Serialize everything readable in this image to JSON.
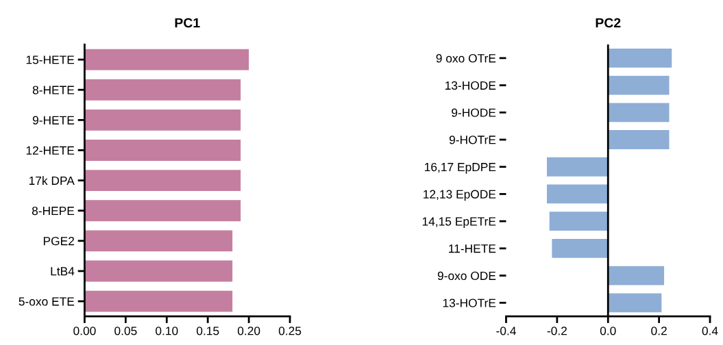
{
  "chart_data": [
    {
      "type": "bar",
      "orientation": "horizontal",
      "title": "PC1",
      "categories": [
        "15-HETE",
        "8-HETE",
        "9-HETE",
        "12-HETE",
        "17k DPA",
        "8-HEPE",
        "PGE2",
        "LtB4",
        "5-oxo ETE"
      ],
      "values": [
        0.2,
        0.19,
        0.19,
        0.19,
        0.19,
        0.19,
        0.18,
        0.18,
        0.18
      ],
      "color": "#c47fa0",
      "xlim": [
        0,
        0.25
      ],
      "xticks": [
        {
          "value": 0,
          "label": "0.00"
        },
        0.05,
        {
          "value": 0.1,
          "label": "0.10"
        },
        0.15,
        {
          "value": 0.2,
          "label": "0.20"
        },
        0.25
      ],
      "grid": false
    },
    {
      "type": "bar",
      "orientation": "horizontal",
      "title": "PC2",
      "categories": [
        "9 oxo OTrE",
        "13-HODE",
        "9-HODE",
        "9-HOTrE",
        "16,17 EpDPE",
        "12,13 EpODE",
        "14,15 EpETrE",
        "11-HETE",
        "9-oxo ODE",
        "13-HOTrE"
      ],
      "values": [
        0.25,
        0.24,
        0.24,
        0.24,
        -0.24,
        -0.24,
        -0.23,
        -0.22,
        0.22,
        0.21
      ],
      "color": "#8eaed6",
      "xlim": [
        -0.4,
        0.4
      ],
      "xticks": [
        -0.4,
        -0.2,
        {
          "value": 0,
          "label": "0.0"
        },
        0.2,
        0.4
      ],
      "grid": false,
      "ref_lines": [
        {
          "axis": "x",
          "value": 0,
          "color": "#000000"
        }
      ]
    }
  ]
}
